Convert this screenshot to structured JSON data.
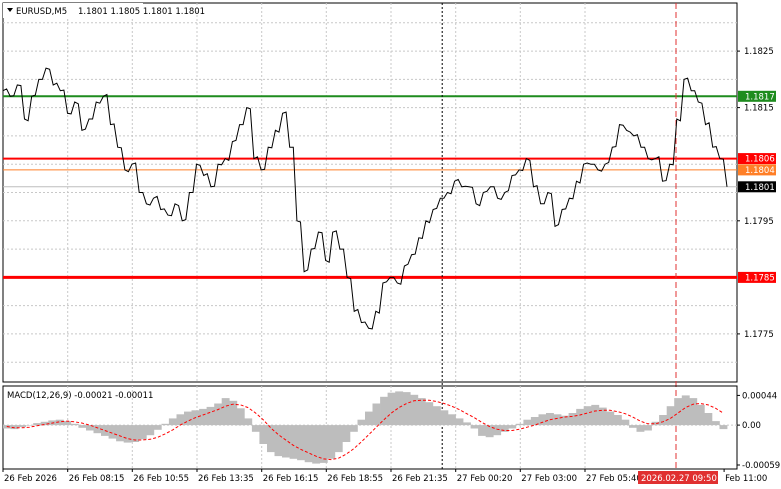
{
  "header": {
    "symbol": "EURUSD,M5",
    "ohlc": "1.1801 1.1805 1.1801 1.1801"
  },
  "macd": {
    "title": "MACD(12,26,9) -0.00021 -0.00011",
    "axis_labels": [
      "0.00044",
      "0.00",
      "-0.00059"
    ],
    "axis_values": [
      0.00044,
      0.0,
      -0.00059
    ],
    "range": [
      -0.00065,
      0.00058
    ],
    "histogram": [
      -5e-05,
      -6e-05,
      -3e-05,
      0.0,
      3e-05,
      5e-05,
      7e-05,
      8e-05,
      6e-05,
      2e-05,
      -4e-05,
      -8e-05,
      -0.00012,
      -0.00016,
      -0.0002,
      -0.00024,
      -0.00026,
      -0.00025,
      -0.00021,
      -0.00015,
      -7e-05,
      2e-05,
      0.0001,
      0.00016,
      0.0002,
      0.00022,
      0.00024,
      0.00027,
      0.00032,
      0.0004,
      0.00036,
      0.00025,
      0.0001,
      -0.0001,
      -0.00028,
      -0.0004,
      -0.00046,
      -0.00048,
      -0.0005,
      -0.00052,
      -0.00055,
      -0.00057,
      -0.00056,
      -0.0005,
      -0.0004,
      -0.00025,
      -0.0001,
      8e-05,
      0.0002,
      0.00032,
      0.00042,
      0.00048,
      0.0005,
      0.00049,
      0.00045,
      0.0004,
      0.00034,
      0.00028,
      0.00022,
      0.00016,
      0.0001,
      4e-05,
      -5e-05,
      -0.00016,
      -0.00018,
      -0.00015,
      -0.0001,
      -5e-05,
      2e-05,
      8e-05,
      0.00012,
      0.00016,
      0.00018,
      0.00016,
      0.00014,
      0.00018,
      0.00024,
      0.00028,
      0.0003,
      0.00026,
      0.0002,
      0.00015,
      8e-05,
      -4e-05,
      -0.0001,
      -8e-05,
      5e-05,
      0.00015,
      0.00028,
      0.0004,
      0.00044,
      0.0004,
      0.0003,
      0.00018,
      6e-05,
      -6e-05
    ],
    "signal": [
      -2e-05,
      -4e-05,
      -4e-05,
      -3e-05,
      -1e-05,
      1e-05,
      3e-05,
      5e-05,
      6e-05,
      5e-05,
      3e-05,
      0.0,
      -4e-05,
      -8e-05,
      -0.00012,
      -0.00016,
      -0.0002,
      -0.00022,
      -0.00022,
      -0.00021,
      -0.00018,
      -0.00013,
      -7e-05,
      0.0,
      6e-05,
      0.00011,
      0.00015,
      0.00019,
      0.00023,
      0.00028,
      0.00031,
      0.0003,
      0.00026,
      0.00018,
      8e-05,
      -4e-05,
      -0.00014,
      -0.00022,
      -0.0003,
      -0.00036,
      -0.00041,
      -0.00046,
      -0.0005,
      -0.00051,
      -0.00049,
      -0.00043,
      -0.00035,
      -0.00025,
      -0.00014,
      -3e-05,
      8e-05,
      0.00018,
      0.00026,
      0.00032,
      0.00036,
      0.00037,
      0.00037,
      0.00035,
      0.00032,
      0.00028,
      0.00023,
      0.00017,
      0.00011,
      4e-05,
      -2e-05,
      -6e-05,
      -8e-05,
      -8e-05,
      -6e-05,
      -3e-05,
      0.0,
      4e-05,
      8e-05,
      0.0001,
      0.00012,
      0.00013,
      0.00015,
      0.00018,
      0.00021,
      0.00022,
      0.00022,
      0.0002,
      0.00017,
      0.00012,
      6e-05,
      2e-05,
      2e-05,
      5e-05,
      0.0001,
      0.00018,
      0.00026,
      0.00031,
      0.00032,
      0.0003,
      0.00025,
      0.00018
    ]
  },
  "chart_data": {
    "type": "line",
    "title": "EURUSD,M5",
    "xlabel": "",
    "ylabel": "",
    "ylim": [
      1.17665,
      1.18335
    ],
    "grid": true,
    "y_tick_labels": [
      "1.1825",
      "1.1815",
      "1.1795",
      "1.1775"
    ],
    "y_tick_values": [
      1.1825,
      1.1815,
      1.1795,
      1.1775
    ],
    "x_tick_labels": [
      "26 Feb 2026",
      "26 Feb 08:15",
      "26 Feb 10:55",
      "26 Feb 13:35",
      "26 Feb 16:15",
      "26 Feb 18:55",
      "26 Feb 21:35",
      "27 Feb 00:20",
      "27 Feb 03:00",
      "27 Feb 05:40",
      "Feb 11:00"
    ],
    "x_tick_positions": [
      0,
      0.0881,
      0.1762,
      0.2643,
      0.3524,
      0.4405,
      0.5286,
      0.6167,
      0.7048,
      0.7929,
      0.9824
    ],
    "cursor_label": "2026.02.27 09:50",
    "cursor_position": 0.9169,
    "session_separator_position": 0.5983,
    "levels": [
      {
        "name": "green-level",
        "value": 1.1817,
        "label": "1.1817",
        "color": "#1e8c1e"
      },
      {
        "name": "red-level-upper",
        "value": 1.1806,
        "label": "1.1806",
        "color": "#ff0000"
      },
      {
        "name": "orange-level",
        "value": 1.1804,
        "label": "1.1804",
        "color": "#ff7f27"
      },
      {
        "name": "red-level-lower",
        "value": 1.1785,
        "label": "1.1785",
        "color": "#ff0000"
      }
    ],
    "current_price": {
      "value": 1.1801,
      "label": "1.1801"
    },
    "series": [
      {
        "values": [
          1.1818,
          1.1817,
          1.1819,
          1.1813,
          1.1817,
          1.182,
          1.1822,
          1.1819,
          1.1818,
          1.1814,
          1.1816,
          1.1811,
          1.1813,
          1.1816,
          1.1817,
          1.1812,
          1.1808,
          1.1804,
          1.1805,
          1.18,
          1.1798,
          1.1799,
          1.1797,
          1.1796,
          1.1798,
          1.1795,
          1.18,
          1.1805,
          1.1803,
          1.1801,
          1.1805,
          1.1806,
          1.1809,
          1.1812,
          1.1815,
          1.1806,
          1.1804,
          1.1808,
          1.1811,
          1.1814,
          1.1808,
          1.1795,
          1.1786,
          1.179,
          1.1793,
          1.1788,
          1.1793,
          1.179,
          1.1785,
          1.1779,
          1.1777,
          1.1776,
          1.1779,
          1.1784,
          1.1785,
          1.1784,
          1.1787,
          1.1789,
          1.1792,
          1.1795,
          1.1797,
          1.1799,
          1.18,
          1.1802,
          1.1801,
          1.1801,
          1.1798,
          1.18,
          1.1801,
          1.1799,
          1.18,
          1.1803,
          1.1804,
          1.1806,
          1.1801,
          1.1798,
          1.18,
          1.1794,
          1.1797,
          1.1799,
          1.1802,
          1.1805,
          1.1805,
          1.1804,
          1.1805,
          1.1808,
          1.1812,
          1.1811,
          1.181,
          1.1808,
          1.1806,
          1.1806,
          1.1802,
          1.1805,
          1.1813,
          1.182,
          1.1818,
          1.1816,
          1.1812,
          1.1808,
          1.1806,
          1.1801
        ]
      }
    ]
  }
}
